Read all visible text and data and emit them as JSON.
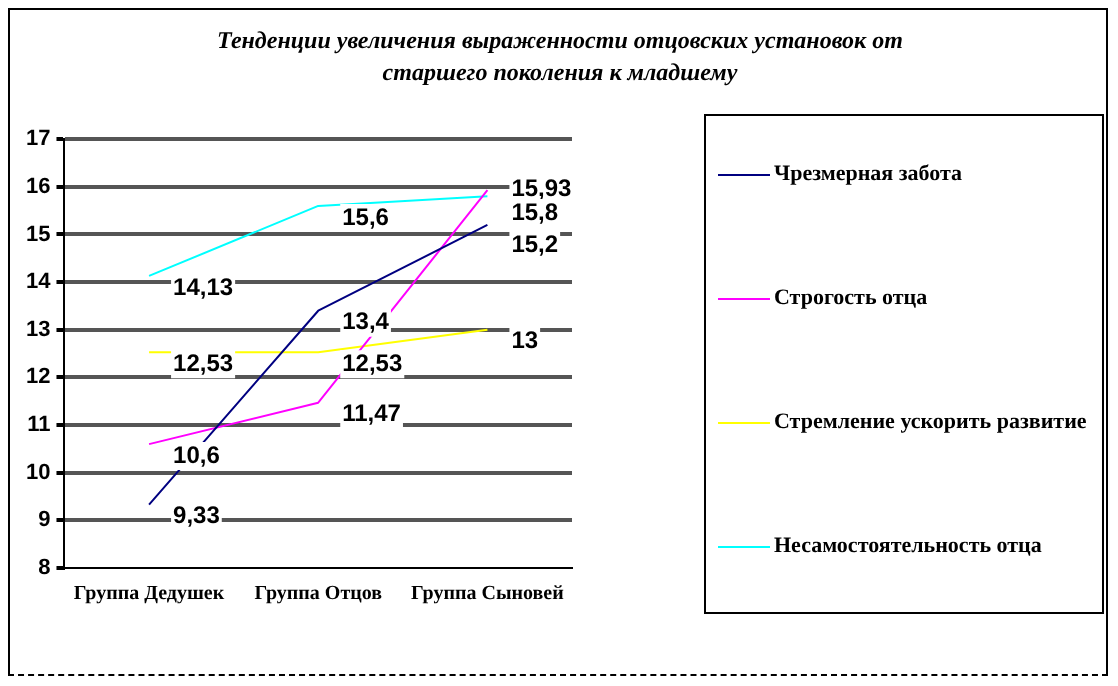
{
  "chart_data": {
    "type": "line",
    "title": "Тенденции увеличения выраженности отцовских установок от старшего поколения к младшему",
    "categories": [
      "Группа Дедушек",
      "Группа Отцов",
      "Группа Сыновей"
    ],
    "series": [
      {
        "name": "Чрезмерная забота",
        "color": "#000080",
        "values": [
          9.33,
          13.4,
          15.2
        ],
        "value_labels": [
          "9,33",
          "13,4",
          "15,2"
        ]
      },
      {
        "name": "Строгость отца",
        "color": "#ff00ff",
        "values": [
          10.6,
          11.47,
          15.93
        ],
        "value_labels": [
          "10,6",
          "11,47",
          "15,93"
        ]
      },
      {
        "name": "Стремление ускорить развитие",
        "color": "#ffff00",
        "values": [
          12.53,
          12.53,
          13
        ],
        "value_labels": [
          "12,53",
          "12,53",
          "13"
        ]
      },
      {
        "name": "Несамостоятельность отца",
        "color": "#00ffff",
        "values": [
          14.13,
          15.6,
          15.8
        ],
        "value_labels": [
          "14,13",
          "15,6",
          "15,8"
        ]
      }
    ],
    "ylim": [
      8,
      17
    ],
    "yticks": [
      8,
      9,
      10,
      11,
      12,
      13,
      14,
      15,
      16,
      17
    ],
    "grid": "y",
    "legend": "right",
    "marker": "none",
    "line_style": "solid"
  }
}
